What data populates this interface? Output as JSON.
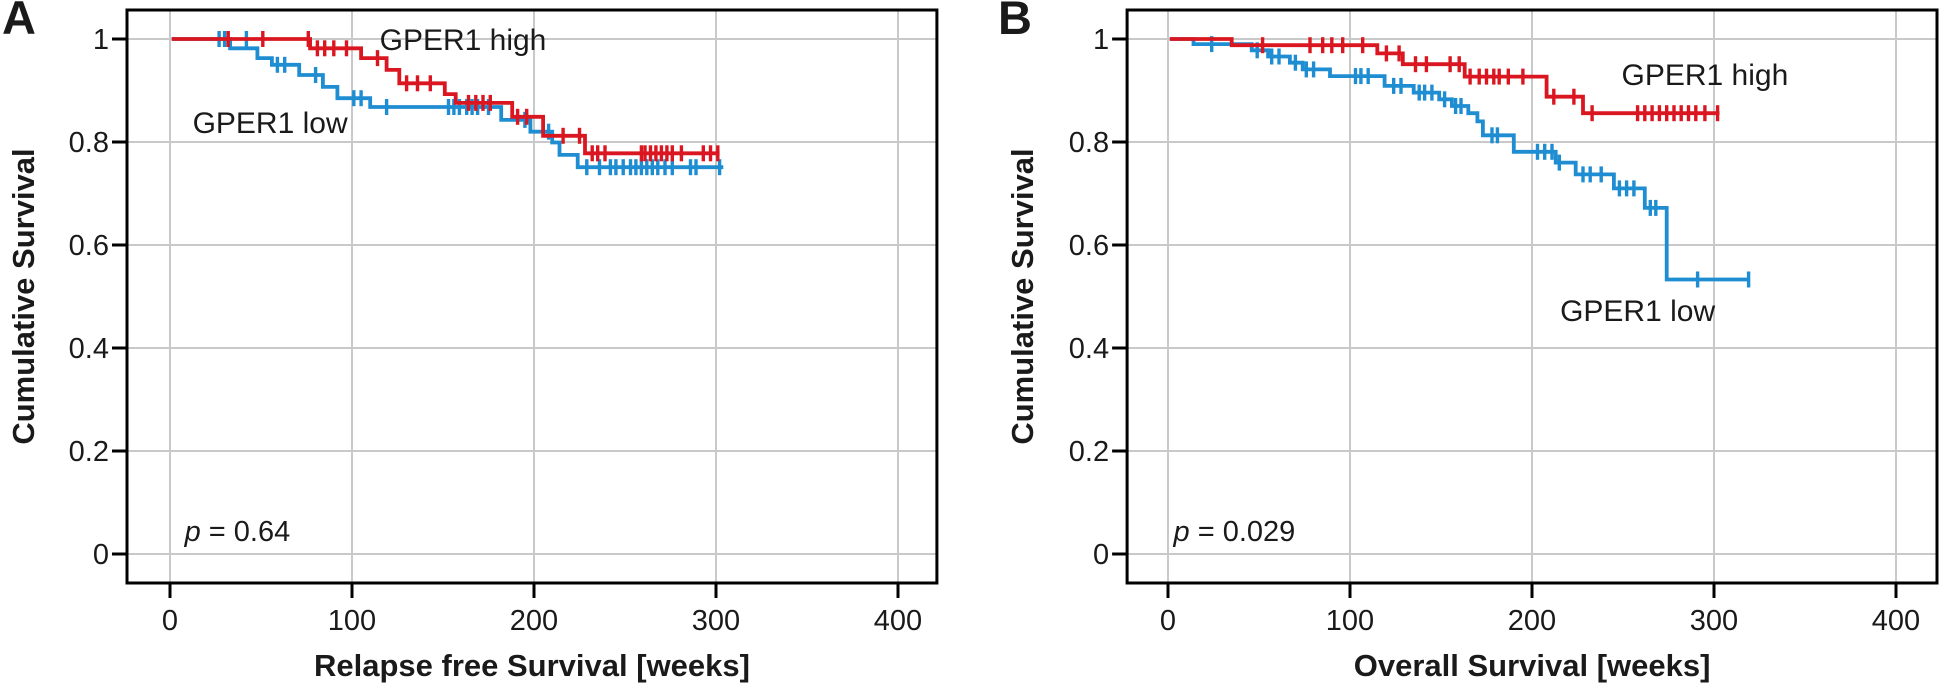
{
  "figure": {
    "background": "#ffffff",
    "text_color": "#1a1a1a",
    "grid_color": "#c9c9c9",
    "frame_color": "#000000"
  },
  "chart_data": [
    {
      "type": "line",
      "subtype": "kaplan_meier_step",
      "panel_letter": "A",
      "xlabel": "Relapse free Survival [weeks]",
      "ylabel": "Cumulative Survival",
      "xticks": [
        0,
        100,
        200,
        300,
        400
      ],
      "yticks": [
        0,
        0.2,
        0.4,
        0.6,
        0.8,
        1
      ],
      "ytick_labels": [
        "0",
        "0.2",
        "0.4",
        "0.6",
        "0.8",
        "1"
      ],
      "xlim": [
        -23.6,
        421.4
      ],
      "ylim": [
        -0.0563,
        1.0563
      ],
      "grid": true,
      "annotation": {
        "text": "p = 0.64",
        "italic_part": "p",
        "x": 8,
        "y": 0.025
      },
      "series": [
        {
          "name": "GPER1 high",
          "color": "#da1720",
          "label": {
            "text": "GPER1 high",
            "x": 161,
            "y": 1.0
          },
          "steps": [
            [
              1,
              1.0
            ],
            [
              77,
              0.982
            ],
            [
              105,
              0.963
            ],
            [
              119,
              0.94
            ],
            [
              126,
              0.914
            ],
            [
              151,
              0.893
            ],
            [
              157,
              0.876
            ],
            [
              188,
              0.849
            ],
            [
              205,
              0.812
            ],
            [
              228,
              0.778
            ]
          ],
          "end": 302,
          "censors": [
            [
              32,
              1.0
            ],
            [
              51,
              1.0
            ],
            [
              76,
              1.0
            ],
            [
              81,
              0.982
            ],
            [
              85,
              0.982
            ],
            [
              90,
              0.982
            ],
            [
              97,
              0.982
            ],
            [
              114,
              0.963
            ],
            [
              130,
              0.914
            ],
            [
              136,
              0.914
            ],
            [
              143,
              0.914
            ],
            [
              164,
              0.876
            ],
            [
              168,
              0.876
            ],
            [
              172,
              0.876
            ],
            [
              176,
              0.876
            ],
            [
              191,
              0.849
            ],
            [
              196,
              0.849
            ],
            [
              216,
              0.812
            ],
            [
              225,
              0.812
            ],
            [
              232,
              0.778
            ],
            [
              235,
              0.778
            ],
            [
              239,
              0.778
            ],
            [
              259,
              0.778
            ],
            [
              261,
              0.778
            ],
            [
              264,
              0.778
            ],
            [
              267,
              0.778
            ],
            [
              270,
              0.778
            ],
            [
              273,
              0.778
            ],
            [
              276,
              0.778
            ],
            [
              281,
              0.778
            ],
            [
              293,
              0.778
            ],
            [
              297,
              0.778
            ],
            [
              301,
              0.778
            ]
          ]
        },
        {
          "name": "GPER1 low",
          "color": "#1f8dd1",
          "label": {
            "text": "GPER1 low",
            "x": 55,
            "y": 0.839
          },
          "steps": [
            [
              1,
              1.0
            ],
            [
              33,
              0.982
            ],
            [
              48,
              0.963
            ],
            [
              56,
              0.95
            ],
            [
              71,
              0.93
            ],
            [
              84,
              0.907
            ],
            [
              92,
              0.885
            ],
            [
              110,
              0.868
            ],
            [
              182,
              0.843
            ],
            [
              198,
              0.82
            ],
            [
              210,
              0.799
            ],
            [
              214,
              0.775
            ],
            [
              224,
              0.751
            ]
          ],
          "end": 304,
          "censors": [
            [
              27,
              1.0
            ],
            [
              30,
              1.0
            ],
            [
              42,
              1.0
            ],
            [
              59,
              0.95
            ],
            [
              63,
              0.95
            ],
            [
              80,
              0.93
            ],
            [
              101,
              0.885
            ],
            [
              105,
              0.885
            ],
            [
              119,
              0.868
            ],
            [
              153,
              0.868
            ],
            [
              156,
              0.868
            ],
            [
              159,
              0.868
            ],
            [
              163,
              0.868
            ],
            [
              166,
              0.868
            ],
            [
              169,
              0.868
            ],
            [
              175,
              0.868
            ],
            [
              195,
              0.843
            ],
            [
              208,
              0.82
            ],
            [
              229,
              0.751
            ],
            [
              236,
              0.751
            ],
            [
              242,
              0.751
            ],
            [
              245,
              0.751
            ],
            [
              249,
              0.751
            ],
            [
              253,
              0.751
            ],
            [
              256,
              0.751
            ],
            [
              259,
              0.751
            ],
            [
              262,
              0.751
            ],
            [
              265,
              0.751
            ],
            [
              268,
              0.751
            ],
            [
              272,
              0.751
            ],
            [
              276,
              0.751
            ],
            [
              286,
              0.751
            ],
            [
              289,
              0.751
            ],
            [
              302,
              0.751
            ]
          ]
        }
      ]
    },
    {
      "type": "line",
      "subtype": "kaplan_meier_step",
      "panel_letter": "B",
      "xlabel": "Overall Survival [weeks]",
      "ylabel": "Cumulative Survival",
      "xticks": [
        0,
        100,
        200,
        300,
        400
      ],
      "yticks": [
        0,
        0.2,
        0.4,
        0.6,
        0.8,
        1
      ],
      "ytick_labels": [
        "0",
        "0.2",
        "0.4",
        "0.6",
        "0.8",
        "1"
      ],
      "xlim": [
        -22.5,
        422.5
      ],
      "ylim": [
        -0.0563,
        1.0563
      ],
      "grid": true,
      "annotation": {
        "text": "p = 0.029",
        "italic_part": "p",
        "x": 3,
        "y": 0.025
      },
      "series": [
        {
          "name": "GPER1 high",
          "color": "#da1720",
          "label": {
            "text": "GPER1 high",
            "x": 295,
            "y": 0.932
          },
          "steps": [
            [
              1,
              1.0
            ],
            [
              35,
              0.988
            ],
            [
              115,
              0.972
            ],
            [
              129,
              0.951
            ],
            [
              163,
              0.927
            ],
            [
              208,
              0.888
            ],
            [
              228,
              0.856
            ]
          ],
          "end": 303,
          "censors": [
            [
              52,
              0.988
            ],
            [
              78,
              0.988
            ],
            [
              85,
              0.988
            ],
            [
              90,
              0.988
            ],
            [
              96,
              0.988
            ],
            [
              107,
              0.988
            ],
            [
              120,
              0.972
            ],
            [
              127,
              0.972
            ],
            [
              136,
              0.951
            ],
            [
              142,
              0.951
            ],
            [
              155,
              0.951
            ],
            [
              160,
              0.951
            ],
            [
              166,
              0.927
            ],
            [
              171,
              0.927
            ],
            [
              175,
              0.927
            ],
            [
              179,
              0.927
            ],
            [
              182,
              0.927
            ],
            [
              187,
              0.927
            ],
            [
              195,
              0.927
            ],
            [
              212,
              0.888
            ],
            [
              223,
              0.888
            ],
            [
              233,
              0.856
            ],
            [
              258,
              0.856
            ],
            [
              262,
              0.856
            ],
            [
              266,
              0.856
            ],
            [
              270,
              0.856
            ],
            [
              274,
              0.856
            ],
            [
              278,
              0.856
            ],
            [
              282,
              0.856
            ],
            [
              286,
              0.856
            ],
            [
              290,
              0.856
            ],
            [
              295,
              0.856
            ],
            [
              302,
              0.856
            ]
          ]
        },
        {
          "name": "GPER1 low",
          "color": "#1f8dd1",
          "label": {
            "text": "GPER1 low",
            "x": 258,
            "y": 0.474
          },
          "steps": [
            [
              1,
              1.0
            ],
            [
              14,
              0.99
            ],
            [
              46,
              0.978
            ],
            [
              55,
              0.966
            ],
            [
              67,
              0.954
            ],
            [
              74,
              0.941
            ],
            [
              89,
              0.928
            ],
            [
              119,
              0.909
            ],
            [
              135,
              0.896
            ],
            [
              149,
              0.883
            ],
            [
              156,
              0.87
            ],
            [
              165,
              0.856
            ],
            [
              170,
              0.84
            ],
            [
              173,
              0.813
            ],
            [
              190,
              0.781
            ],
            [
              213,
              0.76
            ],
            [
              224,
              0.737
            ],
            [
              245,
              0.71
            ],
            [
              262,
              0.672
            ],
            [
              274,
              0.533
            ]
          ],
          "end": 319,
          "censors": [
            [
              24,
              0.99
            ],
            [
              49,
              0.978
            ],
            [
              57,
              0.966
            ],
            [
              61,
              0.966
            ],
            [
              70,
              0.954
            ],
            [
              76,
              0.941
            ],
            [
              80,
              0.941
            ],
            [
              103,
              0.928
            ],
            [
              106,
              0.928
            ],
            [
              110,
              0.928
            ],
            [
              124,
              0.909
            ],
            [
              128,
              0.909
            ],
            [
              138,
              0.896
            ],
            [
              141,
              0.896
            ],
            [
              145,
              0.896
            ],
            [
              152,
              0.883
            ],
            [
              158,
              0.87
            ],
            [
              161,
              0.87
            ],
            [
              178,
              0.813
            ],
            [
              181,
              0.813
            ],
            [
              203,
              0.781
            ],
            [
              207,
              0.781
            ],
            [
              211,
              0.781
            ],
            [
              215,
              0.76
            ],
            [
              228,
              0.737
            ],
            [
              232,
              0.737
            ],
            [
              238,
              0.737
            ],
            [
              248,
              0.71
            ],
            [
              252,
              0.71
            ],
            [
              256,
              0.71
            ],
            [
              265,
              0.672
            ],
            [
              268,
              0.672
            ],
            [
              291,
              0.533
            ],
            [
              319,
              0.533
            ]
          ]
        }
      ]
    }
  ]
}
